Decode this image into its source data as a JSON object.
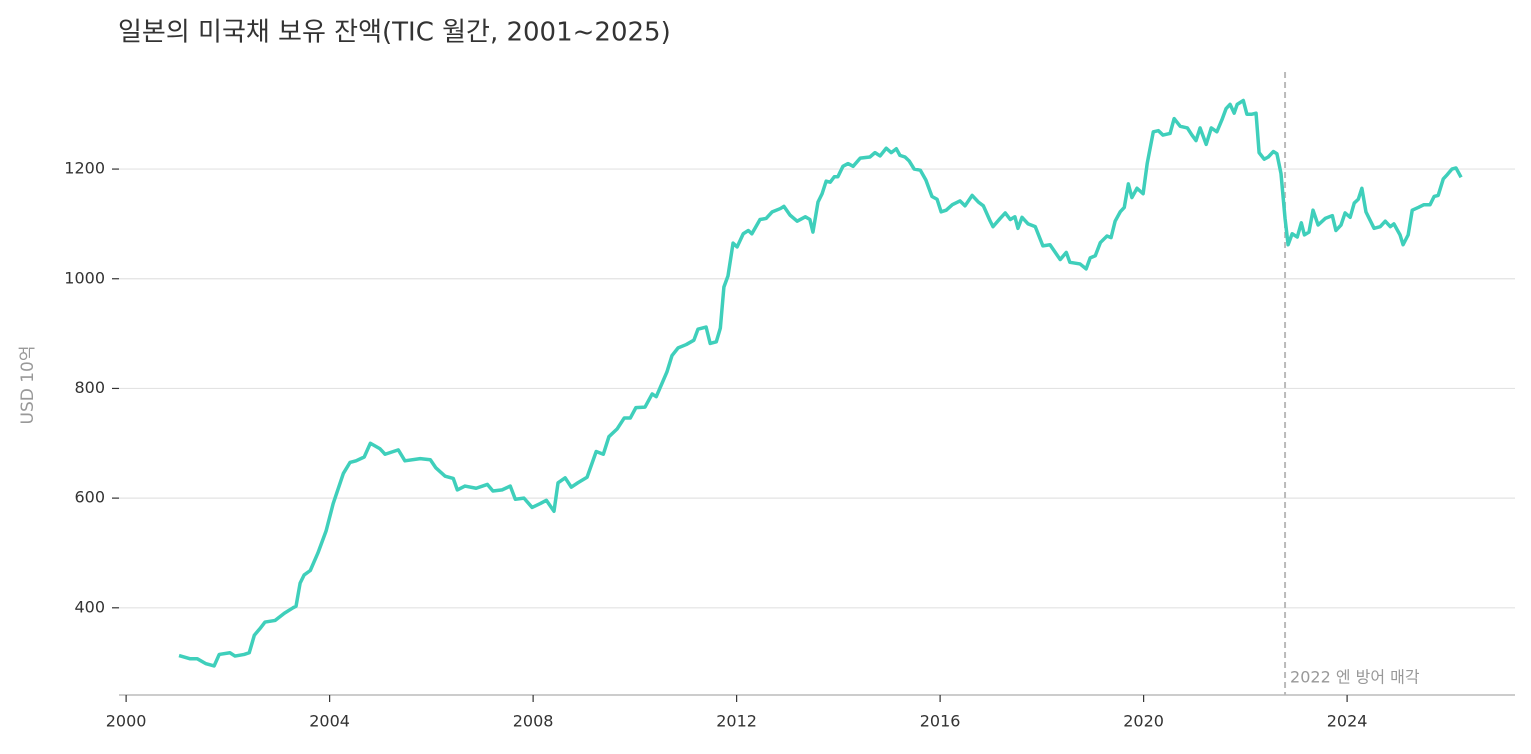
{
  "chart_data": {
    "type": "line",
    "title": "일본의 미국채 보유 잔액(TIC 월간, 2001~2025)",
    "ylabel": "USD 10억",
    "xlim": [
      1999.86,
      2027.3
    ],
    "ylim": [
      241,
      1377
    ],
    "xticks": [
      2000,
      2004,
      2008,
      2012,
      2016,
      2020,
      2024
    ],
    "yticks": [
      400,
      600,
      800,
      1000,
      1200
    ],
    "grid": true,
    "annotation": {
      "x": 2022.78,
      "text": "2022 엔 방어 매각",
      "color": "#bbbbbb"
    },
    "x": [
      2001.04,
      2001.26,
      2001.4,
      2001.57,
      2001.73,
      2001.83,
      2002.04,
      2002.14,
      2002.32,
      2002.42,
      2002.52,
      2002.63,
      2002.73,
      2002.93,
      2003.11,
      2003.28,
      2003.34,
      2003.42,
      2003.5,
      2003.62,
      2003.77,
      2003.93,
      2004.07,
      2004.27,
      2004.4,
      2004.52,
      2004.68,
      2004.8,
      2004.99,
      2005.09,
      2005.35,
      2005.48,
      2005.78,
      2005.98,
      2006.09,
      2006.27,
      2006.43,
      2006.51,
      2006.66,
      2006.88,
      2007.1,
      2007.21,
      2007.39,
      2007.55,
      2007.65,
      2007.82,
      2007.98,
      2008.14,
      2008.26,
      2008.41,
      2008.49,
      2008.63,
      2008.75,
      2008.88,
      2009.06,
      2009.24,
      2009.38,
      2009.49,
      2009.65,
      2009.79,
      2009.91,
      2010.02,
      2010.2,
      2010.34,
      2010.42,
      2010.63,
      2010.73,
      2010.85,
      2011.01,
      2011.16,
      2011.24,
      2011.4,
      2011.48,
      2011.6,
      2011.68,
      2011.75,
      2011.83,
      2011.93,
      2012.01,
      2012.13,
      2012.23,
      2012.3,
      2012.46,
      2012.58,
      2012.7,
      2012.86,
      2012.93,
      2013.05,
      2013.19,
      2013.35,
      2013.44,
      2013.5,
      2013.6,
      2013.68,
      2013.76,
      2013.84,
      2013.92,
      2013.99,
      2014.09,
      2014.19,
      2014.29,
      2014.43,
      2014.62,
      2014.72,
      2014.82,
      2014.94,
      2015.04,
      2015.14,
      2015.21,
      2015.31,
      2015.39,
      2015.49,
      2015.61,
      2015.72,
      2015.84,
      2015.94,
      2016.02,
      2016.12,
      2016.24,
      2016.39,
      2016.49,
      2016.63,
      2016.75,
      2016.85,
      2016.98,
      2017.04,
      2017.18,
      2017.28,
      2017.38,
      2017.47,
      2017.53,
      2017.61,
      2017.73,
      2017.87,
      2018.02,
      2018.16,
      2018.36,
      2018.48,
      2018.55,
      2018.75,
      2018.87,
      2018.95,
      2019.05,
      2019.15,
      2019.28,
      2019.36,
      2019.44,
      2019.54,
      2019.62,
      2019.7,
      2019.77,
      2019.87,
      2019.99,
      2020.07,
      2020.19,
      2020.29,
      2020.38,
      2020.52,
      2020.6,
      2020.72,
      2020.86,
      2020.95,
      2021.03,
      2021.11,
      2021.23,
      2021.33,
      2021.44,
      2021.54,
      2021.62,
      2021.7,
      2021.78,
      2021.84,
      2021.96,
      2022.03,
      2022.13,
      2022.21,
      2022.27,
      2022.37,
      2022.45,
      2022.55,
      2022.62,
      2022.7,
      2022.78,
      2022.84,
      2022.92,
      2023.02,
      2023.1,
      2023.16,
      2023.25,
      2023.33,
      2023.43,
      2023.57,
      2023.71,
      2023.78,
      2023.88,
      2023.96,
      2024.06,
      2024.14,
      2024.22,
      2024.29,
      2024.37,
      2024.53,
      2024.65,
      2024.75,
      2024.85,
      2024.92,
      2025.04,
      2025.1,
      2025.2,
      2025.28,
      2025.4,
      2025.51,
      2025.63,
      2025.71,
      2025.79,
      2025.89,
      2025.97,
      2026.06,
      2026.14,
      2026.24
    ],
    "series": [
      {
        "name": "보유 잔액",
        "color": "#3fcfbb",
        "values": [
          313,
          307,
          307,
          298,
          294,
          315,
          318,
          312,
          315,
          318,
          350,
          362,
          374,
          377,
          390,
          400,
          403,
          445,
          460,
          468,
          500,
          540,
          590,
          645,
          665,
          668,
          675,
          700,
          690,
          680,
          688,
          668,
          672,
          670,
          655,
          640,
          636,
          615,
          622,
          618,
          625,
          613,
          615,
          622,
          598,
          600,
          583,
          590,
          596,
          576,
          628,
          637,
          620,
          628,
          638,
          685,
          680,
          712,
          726,
          746,
          746,
          765,
          766,
          790,
          785,
          830,
          860,
          874,
          880,
          888,
          908,
          912,
          882,
          885,
          910,
          985,
          1005,
          1065,
          1058,
          1082,
          1088,
          1082,
          1108,
          1110,
          1122,
          1128,
          1132,
          1116,
          1105,
          1113,
          1108,
          1085,
          1140,
          1155,
          1178,
          1176,
          1186,
          1186,
          1205,
          1210,
          1205,
          1220,
          1222,
          1230,
          1224,
          1238,
          1230,
          1237,
          1225,
          1222,
          1215,
          1200,
          1198,
          1180,
          1150,
          1145,
          1122,
          1125,
          1135,
          1142,
          1133,
          1152,
          1140,
          1133,
          1106,
          1095,
          1110,
          1120,
          1108,
          1113,
          1092,
          1112,
          1100,
          1095,
          1060,
          1062,
          1035,
          1048,
          1030,
          1027,
          1018,
          1038,
          1042,
          1066,
          1078,
          1075,
          1105,
          1122,
          1130,
          1173,
          1148,
          1165,
          1155,
          1210,
          1268,
          1270,
          1262,
          1265,
          1292,
          1278,
          1275,
          1262,
          1252,
          1275,
          1245,
          1275,
          1268,
          1290,
          1310,
          1318,
          1302,
          1318,
          1325,
          1300,
          1300,
          1302,
          1230,
          1218,
          1222,
          1232,
          1228,
          1192,
          1110,
          1062,
          1082,
          1076,
          1102,
          1080,
          1085,
          1125,
          1098,
          1110,
          1115,
          1088,
          1098,
          1120,
          1112,
          1138,
          1145,
          1165,
          1122,
          1092,
          1095,
          1105,
          1095,
          1100,
          1080,
          1062,
          1080,
          1125,
          1130,
          1135,
          1135,
          1150,
          1152,
          1182,
          1190,
          1200,
          1202,
          1185
        ]
      }
    ]
  }
}
